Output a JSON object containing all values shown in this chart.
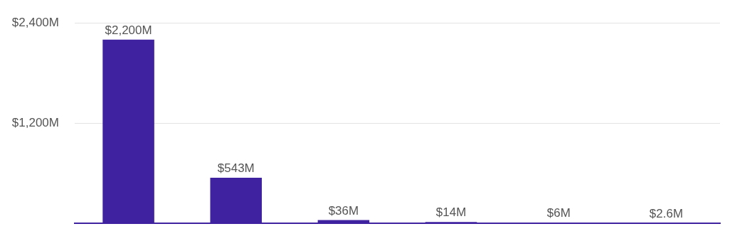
{
  "chart_data": {
    "type": "bar",
    "categories": [
      null,
      null,
      null,
      null,
      null,
      null
    ],
    "values": [
      2200,
      543,
      36,
      14,
      6,
      2.6
    ],
    "color": "#3f22a0",
    "value_labels": [
      "$2,200M",
      "$543M",
      "$36M",
      "$14M",
      "$6M",
      "$2.6M"
    ],
    "ylim": [
      0,
      2400
    ],
    "yticks": [
      {
        "value": 0,
        "label": null
      },
      {
        "value": 1200,
        "label": "$1,200M"
      },
      {
        "value": 2400,
        "label": "$2,400M"
      }
    ],
    "grid": "y",
    "legend": false
  }
}
